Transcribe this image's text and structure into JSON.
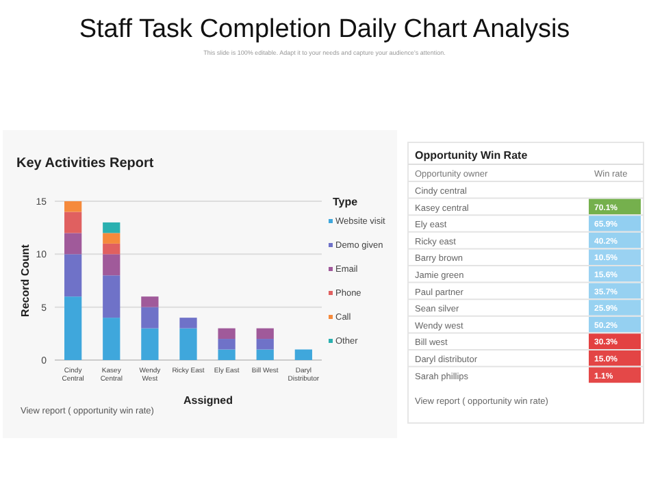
{
  "chart_data": [
    {
      "type": "other",
      "title": "Staff Task Completion Daily Chart Analysis",
      "subtitle": "This slide is 100% editable. Adapt it to your needs and capture your audience's attention."
    },
    {
      "type": "bar",
      "title": "Key Activities Report",
      "xlabel": "Assigned",
      "ylabel": "Record Count",
      "legend_title": "Type",
      "legend": "right",
      "stacked": true,
      "grid": "y",
      "ylim": [
        0,
        15
      ],
      "yticks": [
        0,
        5,
        10,
        15
      ],
      "categories": [
        "Cindy Central",
        "Kasey Central",
        "Wendy West",
        "Ricky East",
        "Ely East",
        "Bill West",
        "Daryl Distributor"
      ],
      "series": [
        {
          "name": "Website visit",
          "color": "#3fa7dc",
          "values": [
            6,
            4,
            3,
            3,
            1,
            1,
            1
          ]
        },
        {
          "name": "Demo given",
          "color": "#6f72c8",
          "values": [
            4,
            4,
            2,
            1,
            1,
            1,
            0
          ]
        },
        {
          "name": "Email",
          "color": "#a05a9a",
          "values": [
            2,
            2,
            1,
            0,
            1,
            1,
            0
          ]
        },
        {
          "name": "Phone",
          "color": "#e06060",
          "values": [
            2,
            1,
            0,
            0,
            0,
            0,
            0
          ]
        },
        {
          "name": "Call",
          "color": "#f58a3c",
          "values": [
            1,
            1,
            0,
            0,
            0,
            0,
            0
          ]
        },
        {
          "name": "Other",
          "color": "#2ab0b0",
          "values": [
            0,
            1,
            0,
            0,
            0,
            0,
            0
          ]
        }
      ],
      "annotations": [
        "View report ( opportunity win rate)"
      ]
    },
    {
      "type": "heatmap",
      "title": "Opportunity Win Rate",
      "ylabel": "Opportunity owner",
      "categories": [
        "Win rate"
      ],
      "y_categories": [
        "Cindy central",
        "Kasey central",
        "Ely east",
        "Ricky east",
        "Barry brown",
        "Jamie green",
        "Paul partner",
        "Sean silver",
        "Wendy west",
        "Bill west",
        "Daryl distributor",
        "Sarah phillips"
      ],
      "cells": [
        [
          null
        ],
        [
          70.1
        ],
        [
          65.9
        ],
        [
          40.2
        ],
        [
          10.5
        ],
        [
          15.6
        ],
        [
          35.7
        ],
        [
          25.9
        ],
        [
          50.2
        ],
        [
          30.3
        ],
        [
          15.0
        ],
        [
          1.1
        ]
      ],
      "cell_labels": [
        [
          null
        ],
        [
          "70.1%"
        ],
        [
          "65.9%"
        ],
        [
          "40.2%"
        ],
        [
          "10.5%"
        ],
        [
          "15.6%"
        ],
        [
          "35.7%"
        ],
        [
          "25.9%"
        ],
        [
          "50.2%"
        ],
        [
          "30.3%"
        ],
        [
          "15.0%"
        ],
        [
          "1.1%"
        ]
      ],
      "colors": [
        null,
        "#70ad47",
        "#8ecdf0",
        "#8ecdf0",
        "#8ecdf0",
        "#8ecdf0",
        "#8ecdf0",
        "#8ecdf0",
        "#8ecdf0",
        "#e03030",
        "#e03030",
        "#e03030"
      ],
      "annotations": [
        "View report ( opportunity win rate)"
      ]
    }
  ]
}
